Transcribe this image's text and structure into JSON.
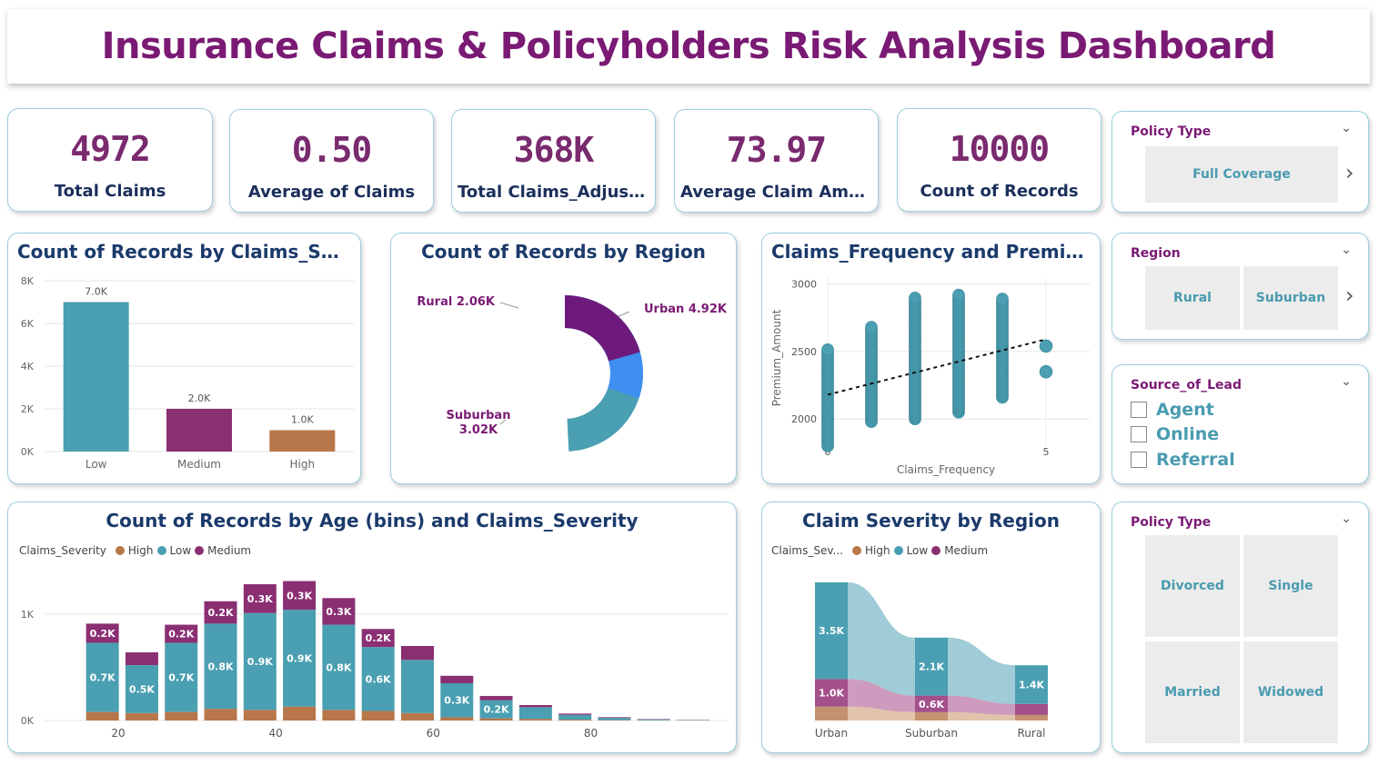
{
  "title": "Insurance Claims & Policyholders Risk Analysis Dashboard",
  "colors": {
    "teal": "#4a9fb2",
    "purple": "#8a2f72",
    "brown": "#b8774a",
    "blue": "#3f8ff0",
    "dark_purple": "#6e1a7c",
    "title": "#7a1a74"
  },
  "kpis": [
    {
      "value": "4972",
      "label": "Total Claims"
    },
    {
      "value": "0.50",
      "label": "Average of Claims"
    },
    {
      "value": "368K",
      "label": "Total Claims_Adjust..."
    },
    {
      "value": "73.97",
      "label": "Average Claim Amo..."
    },
    {
      "value": "10000",
      "label": "Count of Records"
    }
  ],
  "slicers": {
    "policy_type_1": {
      "title": "Policy Type",
      "items": [
        "Full Coverage"
      ],
      "chevron": "chevron-down-icon",
      "next": "chevron-right-icon"
    },
    "region": {
      "title": "Region",
      "items": [
        "Rural",
        "Suburban"
      ],
      "chevron": "chevron-down-icon",
      "next": "chevron-right-icon"
    },
    "source_of_lead": {
      "title": "Source_of_Lead",
      "items": [
        "Agent",
        "Online",
        "Referral"
      ]
    },
    "policy_type_2": {
      "title": "Policy Type",
      "items": [
        "Divorced",
        "Single",
        "Married",
        "Widowed"
      ]
    }
  },
  "chart_data": [
    {
      "id": "severity",
      "type": "bar",
      "title": "Count of Records by Claims_Severity",
      "categories": [
        "Low",
        "Medium",
        "High"
      ],
      "values": [
        7000,
        2000,
        1000
      ],
      "data_labels": [
        "7.0K",
        "2.0K",
        "1.0K"
      ],
      "ylim": [
        0,
        8000
      ],
      "yticks": [
        0,
        2000,
        4000,
        6000,
        8000
      ],
      "ytick_labels": [
        "0K",
        "2K",
        "4K",
        "6K",
        "8K"
      ],
      "colors": [
        "#4a9fb2",
        "#8a2f72",
        "#b8774a"
      ]
    },
    {
      "id": "region",
      "type": "pie",
      "title": "Count of Records by Region",
      "categories": [
        "Urban",
        "Suburban",
        "Rural"
      ],
      "values": [
        4920,
        3020,
        2060
      ],
      "labels": [
        "Urban 4.92K",
        "Suburban 3.02K",
        "Rural 2.06K"
      ],
      "colors": [
        "#4a9fb2",
        "#3f8ff0",
        "#6e1a7c"
      ]
    },
    {
      "id": "scatter",
      "type": "scatter",
      "title": "Claims_Frequency and Premium_A...",
      "xlabel": "Claims_Frequency",
      "ylabel": "Premium_Amount",
      "xlim": [
        0,
        5
      ],
      "ylim": [
        1800,
        3050
      ],
      "xticks": [
        0,
        5
      ],
      "yticks": [
        2000,
        2500,
        3000
      ],
      "columns": [
        {
          "x": 0,
          "ymin": 1800,
          "ymax": 2520
        },
        {
          "x": 1,
          "ymin": 1980,
          "ymax": 2690
        },
        {
          "x": 2,
          "ymin": 2000,
          "ymax": 2900
        },
        {
          "x": 3,
          "ymin": 2050,
          "ymax": 2930
        },
        {
          "x": 4,
          "ymin": 2160,
          "ymax": 2900
        }
      ],
      "points": [
        {
          "x": 5,
          "y": 2540
        },
        {
          "x": 5,
          "y": 2350
        }
      ],
      "trend": [
        {
          "x": 0,
          "y": 2180
        },
        {
          "x": 5,
          "y": 2590
        }
      ]
    },
    {
      "id": "age",
      "type": "bar",
      "title": "Count of Records by Age (bins) and Claims_Severity",
      "legend_title": "Claims_Severity",
      "legend": [
        "High",
        "Low",
        "Medium"
      ],
      "xticks": [
        20,
        40,
        60,
        80
      ],
      "yticks": [
        0,
        1000
      ],
      "ytick_labels": [
        "0K",
        "1K"
      ],
      "ylim": [
        0,
        1400
      ],
      "x": [
        18,
        23,
        28,
        33,
        38,
        43,
        48,
        53,
        58,
        63,
        68,
        73,
        78,
        83,
        88,
        93
      ],
      "series": [
        {
          "name": "High",
          "values": [
            80,
            70,
            80,
            110,
            100,
            130,
            100,
            90,
            70,
            30,
            20,
            15,
            8,
            5,
            3,
            2
          ]
        },
        {
          "name": "Low",
          "values": [
            650,
            450,
            650,
            800,
            910,
            910,
            800,
            600,
            500,
            320,
            170,
            110,
            45,
            20,
            8,
            4
          ]
        },
        {
          "name": "Medium",
          "values": [
            180,
            120,
            170,
            210,
            270,
            270,
            250,
            170,
            130,
            70,
            40,
            20,
            12,
            6,
            3,
            1
          ]
        }
      ],
      "data_labels": {
        "Low": [
          "0.7K",
          "0.5K",
          "0.7K",
          "0.8K",
          "0.9K",
          "0.9K",
          "0.8K",
          "0.6K",
          "",
          "0.3K",
          "0.2K",
          "",
          "",
          "",
          "",
          ""
        ],
        "Medium": [
          "0.2K",
          "",
          "0.2K",
          "0.2K",
          "0.3K",
          "0.3K",
          "0.3K",
          "0.2K",
          "",
          "",
          "",
          "",
          "",
          "",
          "",
          ""
        ]
      }
    },
    {
      "id": "ribbon",
      "type": "area",
      "title": "Claim Severity by Region",
      "legend_title": "Claims_Sev...",
      "legend": [
        "High",
        "Low",
        "Medium"
      ],
      "categories": [
        "Urban",
        "Suburban",
        "Rural"
      ],
      "series": [
        {
          "name": "High",
          "values": [
            500,
            300,
            200
          ]
        },
        {
          "name": "Medium",
          "values": [
            1000,
            600,
            400
          ]
        },
        {
          "name": "Low",
          "values": [
            3500,
            2100,
            1400
          ]
        }
      ],
      "data_labels": {
        "Low": [
          "3.5K",
          "2.1K",
          "1.4K"
        ],
        "Medium": [
          "1.0K",
          "0.6K",
          ""
        ]
      }
    }
  ]
}
